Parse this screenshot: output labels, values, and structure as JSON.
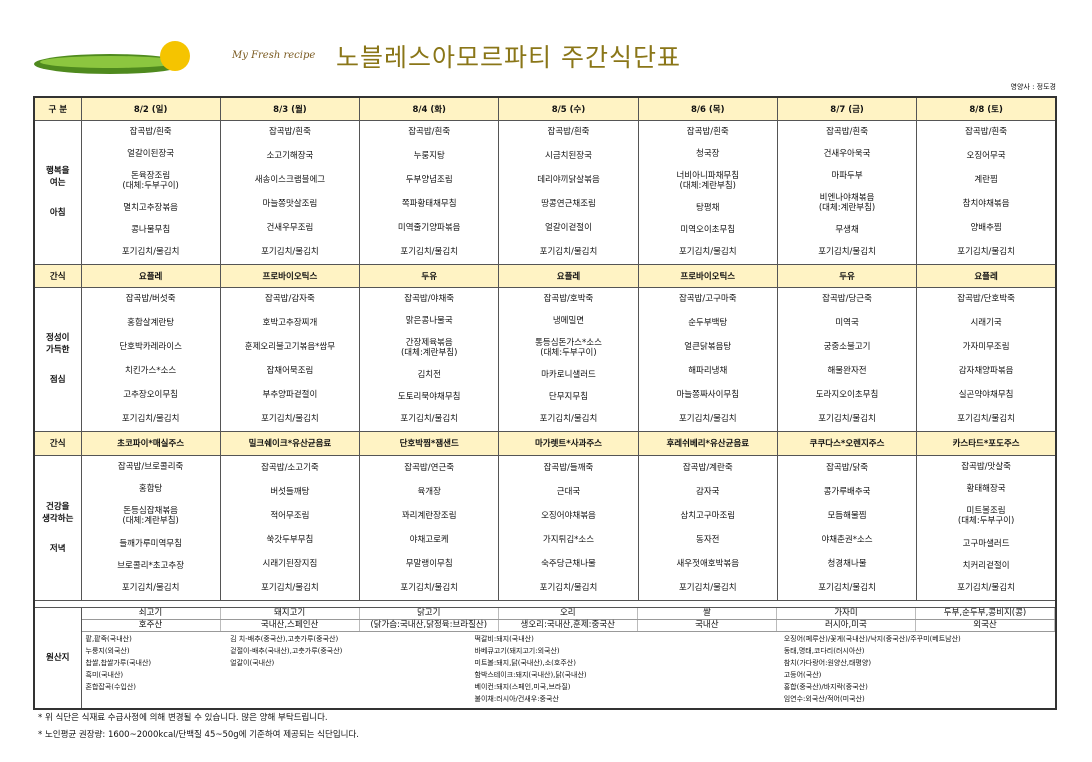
{
  "header": {
    "brand": "My Fresh recipe",
    "title": "노블레스아모르파티 주간식단표",
    "dietitian": "영양사 : 정도경"
  },
  "table": {
    "corner": "구 분",
    "days": [
      "8/2 (일)",
      "8/3 (월)",
      "8/4 (화)",
      "8/5 (수)",
      "8/6 (목)",
      "8/7 (금)",
      "8/8 (토)"
    ],
    "breakfast": {
      "label": "행복을\n여는",
      "meal": "아침",
      "menus": [
        [
          "잡곡밥/흰죽",
          "얼갈이된장국",
          "돈육장조림\n(대체:두부구이)",
          "멸치고추장볶음",
          "콩나물무침",
          "포기김치/물김치"
        ],
        [
          "잡곡밥/흰죽",
          "소고기해장국",
          "새송이스크램블에그",
          "마늘쫑맛살조림",
          "건새우무조림",
          "포기김치/물김치"
        ],
        [
          "잡곡밥/흰죽",
          "누룽지탕",
          "두부양념조림",
          "쪽파황태채무침",
          "미역줄기양파볶음",
          "포기김치/물김치"
        ],
        [
          "잡곡밥/흰죽",
          "시금치된장국",
          "데리야끼닭살볶음",
          "땅콩연근채조림",
          "얼갈이겉절이",
          "포기김치/물김치"
        ],
        [
          "잡곡밥/흰죽",
          "청국장",
          "너비아니파채무침\n(대체:계란부침)",
          "탕평채",
          "미역오이초무침",
          "포기김치/물김치"
        ],
        [
          "잡곡밥/흰죽",
          "건새우아욱국",
          "마파두부",
          "비엔나야채볶음\n(대체:계란부침)",
          "무생채",
          "포기김치/물김치"
        ],
        [
          "잡곡밥/흰죽",
          "오징어무국",
          "계란찜",
          "참치야채볶음",
          "양배추찜",
          "포기김치/물김치"
        ]
      ]
    },
    "snack1": {
      "label": "간식",
      "items": [
        "요플레",
        "프로바이오틱스",
        "두유",
        "요플레",
        "프로바이오틱스",
        "두유",
        "요플레"
      ]
    },
    "lunch": {
      "label": "정성이\n가득한",
      "meal": "점심",
      "menus": [
        [
          "잡곡밥/버섯죽",
          "홍합살계란탕",
          "단호박카레라이스",
          "치킨가스*소스",
          "고추장오이무침",
          "포기김치/물김치"
        ],
        [
          "잡곡밥/감자죽",
          "호박고추장찌개",
          "훈제오리불고기볶음*쌈무",
          "잡채어묵조림",
          "부추양파겉절이",
          "포기김치/물김치"
        ],
        [
          "잡곡밥/야채죽",
          "맑은콩나물국",
          "간장제육볶음\n(대체:계란부침)",
          "김치전",
          "도토리묵야채무침",
          "포기김치/물김치"
        ],
        [
          "잡곡밥/호박죽",
          "냉메밀면",
          "통등심돈가스*소스\n(대체:두부구이)",
          "마카로니샐러드",
          "단무지무침",
          "포기김치/물김치"
        ],
        [
          "잡곡밥/고구마죽",
          "순두부백탕",
          "얼큰닭볶음탕",
          "해파리냉채",
          "마늘쫑짜사이무침",
          "포기김치/물김치"
        ],
        [
          "잡곡밥/당근죽",
          "미역국",
          "궁중소불고기",
          "해물완자전",
          "도라지오이초무침",
          "포기김치/물김치"
        ],
        [
          "잡곡밥/단호박죽",
          "시래기국",
          "가자미무조림",
          "감자채양파볶음",
          "실곤약야채무침",
          "포기김치/물김치"
        ]
      ]
    },
    "snack2": {
      "label": "간식",
      "items": [
        "초코파이*매실주스",
        "밀크쉐이크*유산균음료",
        "단호박찜*잼샌드",
        "마가렛트*사과주스",
        "후레쉬베리*유산균음료",
        "쿠쿠다스*오렌지주스",
        "카스타드*포도주스"
      ]
    },
    "dinner": {
      "label": "건강을\n생각하는",
      "meal": "저녁",
      "menus": [
        [
          "잡곡밥/브로콜리죽",
          "홍합탕",
          "돈등심잡채볶음\n(대체:계란부침)",
          "들깨가루미역무침",
          "브로콜리*초고추장",
          "포기김치/물김치"
        ],
        [
          "잡곡밥/소고기죽",
          "버섯들깨탕",
          "적어무조림",
          "쑥갓두부무침",
          "시래기된장지짐",
          "포기김치/물김치"
        ],
        [
          "잡곡밥/연근죽",
          "육개장",
          "꽈리계란장조림",
          "야채고로케",
          "무말랭이무침",
          "포기김치/물김치"
        ],
        [
          "잡곡밥/들깨죽",
          "근대국",
          "오징어야채볶음",
          "가지튀김*소스",
          "숙주당근채나물",
          "포기김치/물김치"
        ],
        [
          "잡곡밥/계란죽",
          "감자국",
          "삼치고구마조림",
          "동자전",
          "새우젓애호박볶음",
          "포기김치/물김치"
        ],
        [
          "잡곡밥/닭죽",
          "콩가루배추국",
          "모듬해물찜",
          "야채춘권*소스",
          "청경채나물",
          "포기김치/물김치"
        ],
        [
          "잡곡밥/맛살죽",
          "황태해장국",
          "미트볼조림\n(대체:두부구이)",
          "고구마샐러드",
          "치커리겉절이",
          "포기김치/물김치"
        ]
      ]
    }
  },
  "origin": {
    "label": "원산지",
    "items": [
      {
        "name": "쇠고기",
        "source": "호주산"
      },
      {
        "name": "돼지고기",
        "source": "국내산,스페인산"
      },
      {
        "name": "닭고기",
        "source": "(닭가슴:국내산,닭정육:브라질산)"
      },
      {
        "name": "오리",
        "source": "생오리:국내산,훈제:중국산"
      },
      {
        "name": "쌀",
        "source": "국내산"
      },
      {
        "name": "가자미",
        "source": "러시아,미국"
      },
      {
        "name": "두부,순두부,콩비지(콩)",
        "source": "외국산"
      }
    ],
    "lists": [
      [
        "팥,팥죽(국내산)",
        "누룽지(외국산)",
        "찹쌀,찹쌀가루(국내산)",
        "흑미(국내산)",
        "혼합잡곡(수입산)"
      ],
      [
        "김 치-배추(중국산),고춧가루(중국산)",
        "겉절이-배추(국내산),고춧가루(중국산)",
        "얼갈이(국내산)"
      ],
      [
        "떡갈비:돼지(국내산)",
        "바베큐고기(돼지고기:외국산)",
        "미트볼:돼지,닭(국내산),소(호주산)",
        "함박스테이크:돼지(국내산),닭(국내산)",
        "베이컨:돼지(스페인,미국,브라질)",
        "불이채:러시아/건새우:중국산"
      ],
      [
        "오징어(페루산)/꽃게(국내산)/낙지(중국산)/주꾸미(베트남산)",
        "동태,명태,코다리(러시아산)",
        "참치(가다랑어:원양산,태평양)",
        "고등어(국산)",
        "홍합(중국산)/바지락(중국산)",
        "임연수:외국산/적어(미국산)"
      ]
    ]
  },
  "notes": [
    "* 위 식단은 식재료 수급사정에 의해 변경될 수 있습니다. 많은 양해 부탁드립니다.",
    "* 노인평균 권장량: 1600~2000kcal/단백질 45~50g에 기준하여 제공되는 식단입니다."
  ]
}
